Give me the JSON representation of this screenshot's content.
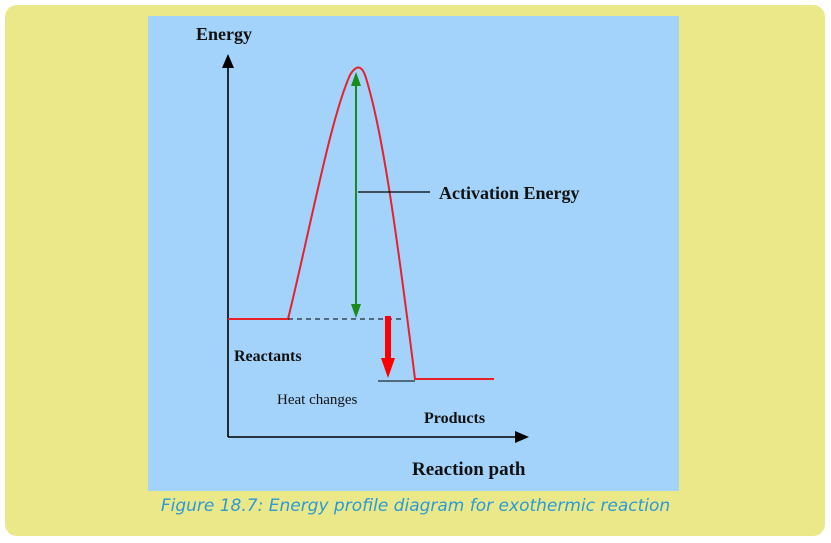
{
  "figure": {
    "y_axis_label": "Energy",
    "x_axis_label": "Reaction path",
    "activation_energy_label": "Activation Energy",
    "reactants_label": "Reactants",
    "products_label": "Products",
    "heat_changes_label": "Heat changes",
    "caption": "Figure 18.7: Energy profile diagram for exothermic reaction"
  },
  "colors": {
    "panel_background": "#ebe88a",
    "figure_background": "#a3d3fb",
    "energy_curve": "#e8202a",
    "activation_arrow": "#1a8a1a",
    "heat_arrow": "#ff0000",
    "caption": "#2b9ad6"
  }
}
